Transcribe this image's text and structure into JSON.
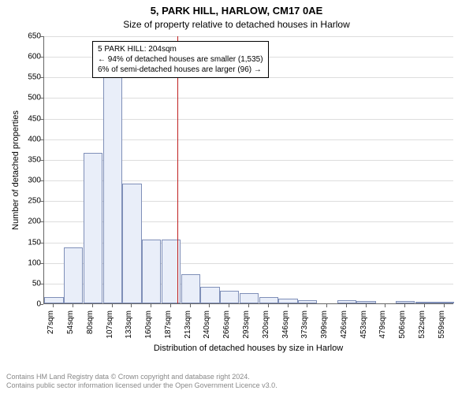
{
  "title_main": "5, PARK HILL, HARLOW, CM17 0AE",
  "title_sub": "Size of property relative to detached houses in Harlow",
  "y_axis_title": "Number of detached properties",
  "x_axis_title": "Distribution of detached houses by size in Harlow",
  "footer_line1": "Contains HM Land Registry data © Crown copyright and database right 2024.",
  "footer_line2": "Contains public sector information licensed under the Open Government Licence v3.0.",
  "chart": {
    "type": "histogram",
    "background_color": "#ffffff",
    "grid_color": "#dddddd",
    "axis_color": "#666666",
    "bar_fill": "#e9eef9",
    "bar_stroke": "#7f8fb8",
    "refline_color": "#c02020",
    "y_min": 0,
    "y_max": 650,
    "y_tick_step": 50,
    "x_ticks": [
      "27sqm",
      "54sqm",
      "80sqm",
      "107sqm",
      "133sqm",
      "160sqm",
      "187sqm",
      "213sqm",
      "240sqm",
      "266sqm",
      "293sqm",
      "320sqm",
      "346sqm",
      "373sqm",
      "399sqm",
      "426sqm",
      "453sqm",
      "479sqm",
      "506sqm",
      "532sqm",
      "559sqm"
    ],
    "bars": [
      15,
      135,
      365,
      550,
      290,
      155,
      155,
      70,
      40,
      30,
      25,
      15,
      12,
      8,
      0,
      8,
      5,
      0,
      5,
      3,
      3
    ],
    "reference_sqm": 204,
    "x_domain_min": 27,
    "x_domain_max": 572,
    "annotation": {
      "line1": "5 PARK HILL: 204sqm",
      "line2": "← 94% of detached houses are smaller (1,535)",
      "line3": "6% of semi-detached houses are larger (96) →"
    },
    "title_fontsize": 13,
    "subtitle_fontsize": 12,
    "axis_label_fontsize": 11,
    "tick_fontsize": 10,
    "annotation_fontsize": 10,
    "footer_fontsize": 9,
    "footer_color": "#888888"
  }
}
